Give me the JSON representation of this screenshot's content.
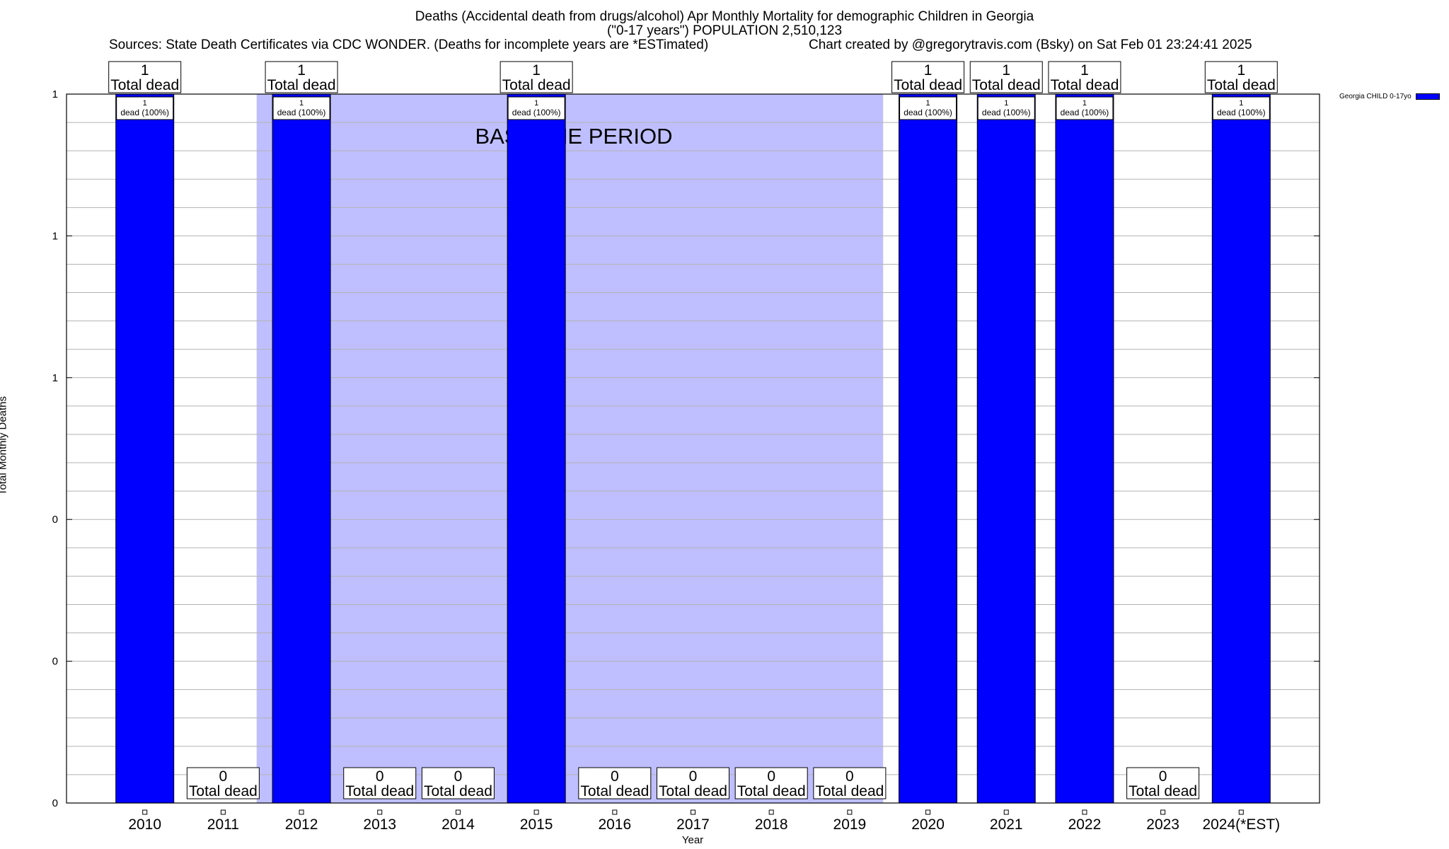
{
  "chart_data": {
    "type": "bar",
    "title": "Deaths (Accidental death from drugs/alcohol) Apr Monthly Mortality for demographic Children in Georgia",
    "subtitle": "(\"0-17 years\") POPULATION 2,510,123",
    "sources": "Sources: State Death Certificates via CDC WONDER. (Deaths for incomplete years are *ESTimated)",
    "credit": "Chart created by @gregorytravis.com (Bsky) on Sat Feb 01 23:24:41 2025",
    "xlabel": "Year",
    "ylabel": "Total Monthly Deaths",
    "ylim": [
      0,
      1
    ],
    "ytick_values": [
      0,
      0.2,
      0.4,
      0.6,
      0.8,
      1.0
    ],
    "ytick_labels": [
      "0",
      "0",
      "0",
      "1",
      "1",
      "1"
    ],
    "grid": true,
    "legend_position": "top-right",
    "series": [
      {
        "name": "Georgia CHILD 0-17yo",
        "color": "#0000ff",
        "values": [
          1,
          0,
          1,
          0,
          0,
          1,
          0,
          0,
          0,
          0,
          1,
          1,
          1,
          0,
          1
        ]
      }
    ],
    "categories": [
      "2010",
      "2011",
      "2012",
      "2013",
      "2014",
      "2015",
      "2016",
      "2017",
      "2018",
      "2019",
      "2020",
      "2021",
      "2022",
      "2023",
      "2024(*EST)"
    ],
    "total_labels": [
      "1\nTotal dead",
      "0\nTotal dead",
      "1\nTotal dead",
      "0\nTotal dead",
      "0\nTotal dead",
      "1\nTotal dead",
      "0\nTotal dead",
      "0\nTotal dead",
      "0\nTotal dead",
      "0\nTotal dead",
      "1\nTotal dead",
      "1\nTotal dead",
      "1\nTotal dead",
      "0\nTotal dead",
      "1\nTotal dead"
    ],
    "inner_labels": [
      "1\ndead (100%)",
      "",
      "1\ndead (100%)",
      "",
      "",
      "1\ndead (100%)",
      "",
      "",
      "",
      "",
      "1\ndead (100%)",
      "1\ndead (100%)",
      "1\ndead (100%)",
      "",
      "1\ndead (100%)"
    ],
    "baseline_period": {
      "label": "BASELINE PERIOD",
      "start": "2012",
      "end": "2019",
      "color": "#bfbfff"
    }
  }
}
